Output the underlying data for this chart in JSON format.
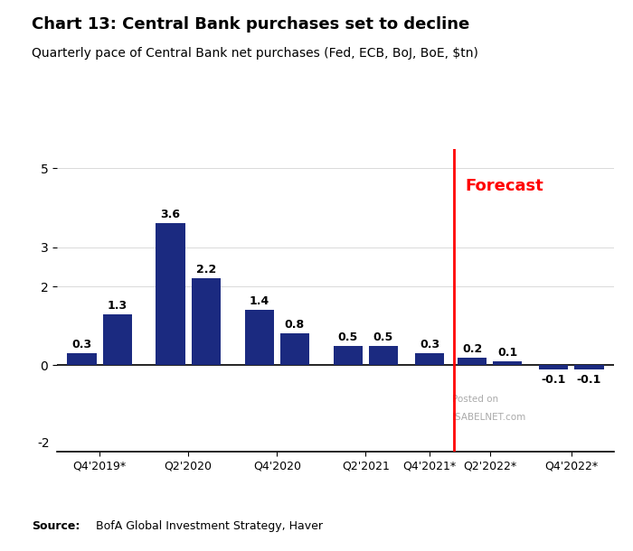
{
  "title_bold": "Chart 13: Central Bank purchases set to decline",
  "subtitle": "Quarterly pace of Central Bank net purchases (Fed, ECB, BoJ, BoE, $tn)",
  "values": [
    0.3,
    1.3,
    3.6,
    2.2,
    1.4,
    0.8,
    0.5,
    0.5,
    0.3,
    0.2,
    0.1,
    -0.1,
    -0.1
  ],
  "x_positions": [
    0.0,
    1.0,
    2.5,
    3.5,
    5.0,
    6.0,
    7.5,
    8.5,
    9.8,
    11.0,
    12.0,
    13.3,
    14.3
  ],
  "x_tick_positions": [
    0.5,
    3.0,
    5.5,
    8.0,
    9.8,
    11.5,
    13.8
  ],
  "x_tick_labels": [
    "Q4'2019*",
    "Q2'2020",
    "Q4'2020",
    "Q2'2021",
    "Q4'2021*",
    "Q2'2022*",
    "Q4'2022*"
  ],
  "bar_color": "#1b2a80",
  "forecast_line_x": 10.5,
  "forecast_label": "Forecast",
  "forecast_color": "#ff0000",
  "ylim": [
    -2.2,
    5.5
  ],
  "yticks": [
    0,
    2,
    3,
    5
  ],
  "ytick_labels": [
    "0",
    "2",
    "3",
    "5"
  ],
  "yminus2_label": "-2",
  "legend_label": "Quarterly pace of Central Bank net\npurchases (Fed, ECB, BoJ, BoE) ($tn)",
  "source_bold": "Source:",
  "source_rest": "  BofA Global Investment Strategy, Haver",
  "watermark_line1": "Posted on",
  "watermark_line2": "ISABELNET.com",
  "background_color": "#ffffff"
}
